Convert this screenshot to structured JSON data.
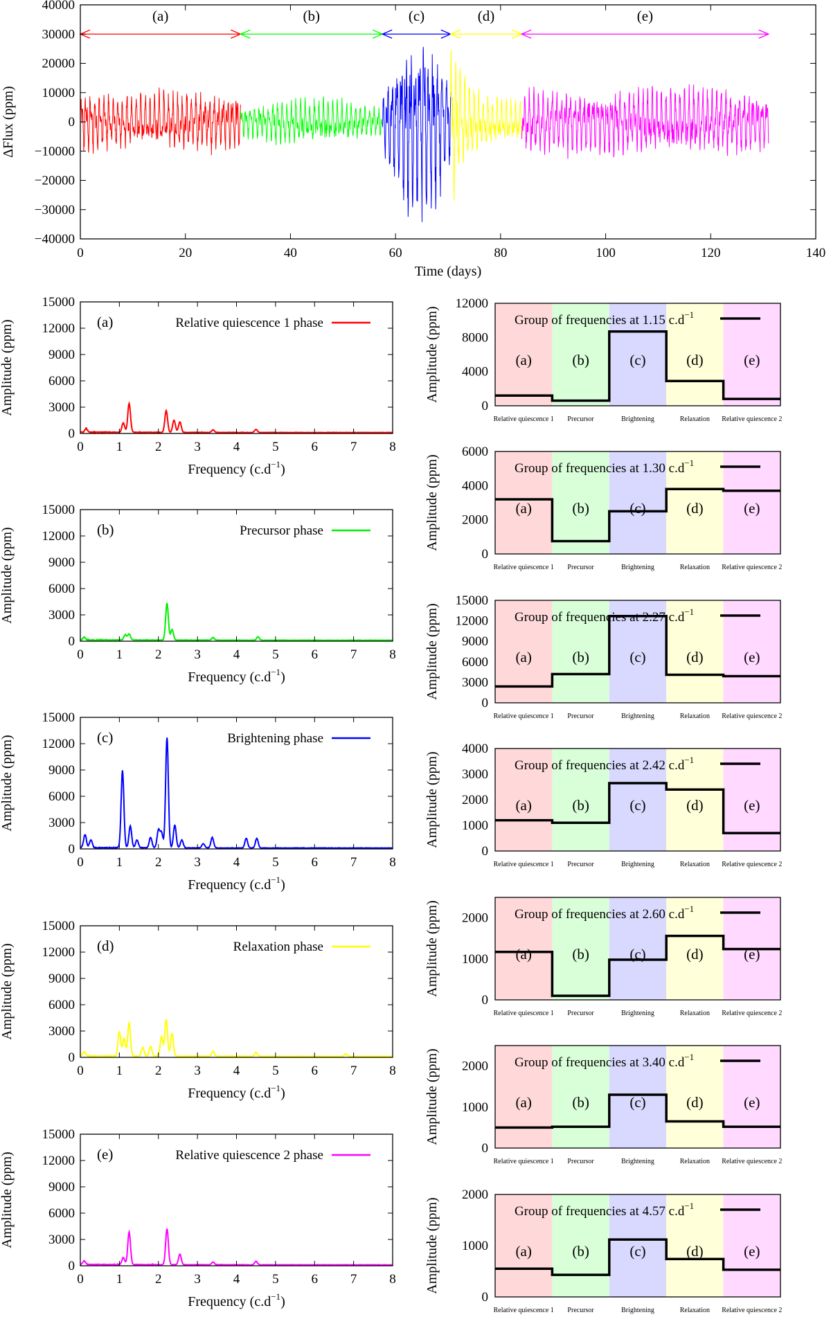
{
  "chart_data": [
    {
      "type": "line",
      "id": "light-curve",
      "xlabel": "Time (days)",
      "ylabel": "ΔFlux (ppm)",
      "xlim": [
        0,
        140
      ],
      "ylim": [
        -40000,
        40000
      ],
      "xticks": [
        "0",
        "20",
        "40",
        "60",
        "80",
        "100",
        "120",
        "140"
      ],
      "yticks": [
        "−40000",
        "−30000",
        "−20000",
        "−10000",
        "0",
        "10000",
        "20000",
        "30000",
        "40000"
      ],
      "segments": [
        {
          "label": "(a)",
          "start": 0,
          "end": 30.5,
          "color": "#ff0000"
        },
        {
          "label": "(b)",
          "start": 30.5,
          "end": 57.5,
          "color": "#00ff00"
        },
        {
          "label": "(c)",
          "start": 57.5,
          "end": 70.5,
          "color": "#0000ff"
        },
        {
          "label": "(d)",
          "start": 70.5,
          "end": 84,
          "color": "#ffff00"
        },
        {
          "label": "(e)",
          "start": 84,
          "end": 131,
          "color": "#ff00ff"
        }
      ],
      "arrow_level": 30000,
      "grid": false
    },
    {
      "type": "line",
      "id": "spectrum-a",
      "panel": "(a)",
      "legend": "Relative quiescence 1 phase",
      "color": "#ff0000",
      "xlabel": "Frequency (c.d",
      "xlabel_sup": "−1",
      "xlabel_end": ")",
      "ylabel": "Amplitude (ppm)",
      "xlim": [
        0,
        8
      ],
      "ylim": [
        0,
        15000
      ],
      "xticks": [
        "0",
        "1",
        "2",
        "3",
        "4",
        "5",
        "6",
        "7",
        "8"
      ],
      "yticks": [
        "0",
        "3000",
        "6000",
        "9000",
        "12000",
        "15000"
      ],
      "peaks": [
        [
          1.25,
          3300
        ],
        [
          1.1,
          1100
        ],
        [
          2.2,
          2500
        ],
        [
          2.4,
          1400
        ],
        [
          2.55,
          1200
        ],
        [
          0.15,
          400
        ],
        [
          3.4,
          300
        ],
        [
          4.5,
          350
        ]
      ]
    },
    {
      "type": "line",
      "id": "spectrum-b",
      "panel": "(b)",
      "legend": "Precursor phase",
      "color": "#00ee00",
      "xlabel": "Frequency (c.d",
      "xlabel_sup": "−1",
      "xlabel_end": ")",
      "ylabel": "Amplitude (ppm)",
      "xlim": [
        0,
        8
      ],
      "ylim": [
        0,
        15000
      ],
      "xticks": [
        "0",
        "1",
        "2",
        "3",
        "4",
        "5",
        "6",
        "7",
        "8"
      ],
      "yticks": [
        "0",
        "3000",
        "6000",
        "9000",
        "12000",
        "15000"
      ],
      "peaks": [
        [
          2.22,
          4200
        ],
        [
          2.35,
          1200
        ],
        [
          1.25,
          700
        ],
        [
          1.15,
          600
        ],
        [
          0.1,
          300
        ],
        [
          3.4,
          300
        ],
        [
          4.55,
          400
        ]
      ]
    },
    {
      "type": "line",
      "id": "spectrum-c",
      "panel": "(c)",
      "legend": "Brightening phase",
      "color": "#0000ff",
      "xlabel": "Frequency (c.d",
      "xlabel_sup": "−1",
      "xlabel_end": ")",
      "ylabel": "Amplitude (ppm)",
      "xlim": [
        0,
        8
      ],
      "ylim": [
        0,
        15000
      ],
      "xticks": [
        "0",
        "1",
        "2",
        "3",
        "4",
        "5",
        "6",
        "7",
        "8"
      ],
      "yticks": [
        "0",
        "3000",
        "6000",
        "9000",
        "12000",
        "15000"
      ],
      "peaks": [
        [
          1.08,
          8800
        ],
        [
          2.22,
          12600
        ],
        [
          1.28,
          2500
        ],
        [
          2.0,
          2000
        ],
        [
          2.08,
          1700
        ],
        [
          2.42,
          2600
        ],
        [
          0.12,
          1500
        ],
        [
          0.27,
          900
        ],
        [
          1.8,
          1200
        ],
        [
          1.45,
          900
        ],
        [
          3.38,
          1200
        ],
        [
          4.25,
          1100
        ],
        [
          4.52,
          1100
        ],
        [
          2.6,
          900
        ],
        [
          3.15,
          500
        ]
      ]
    },
    {
      "type": "line",
      "id": "spectrum-d",
      "panel": "(d)",
      "legend": "Relaxation phase",
      "color": "#ffff00",
      "xlabel": "Frequency (c.d",
      "xlabel_sup": "−1",
      "xlabel_end": ")",
      "ylabel": "Amplitude (ppm)",
      "xlim": [
        0,
        8
      ],
      "ylim": [
        0,
        15000
      ],
      "xticks": [
        "0",
        "1",
        "2",
        "3",
        "4",
        "5",
        "6",
        "7",
        "8"
      ],
      "yticks": [
        "0",
        "3000",
        "6000",
        "9000",
        "12000",
        "15000"
      ],
      "peaks": [
        [
          1.0,
          2800
        ],
        [
          1.25,
          3800
        ],
        [
          1.12,
          2000
        ],
        [
          2.2,
          4200
        ],
        [
          2.35,
          2600
        ],
        [
          2.08,
          2300
        ],
        [
          1.6,
          1000
        ],
        [
          1.8,
          1100
        ],
        [
          0.1,
          500
        ],
        [
          3.4,
          600
        ],
        [
          4.5,
          500
        ],
        [
          6.8,
          300
        ]
      ]
    },
    {
      "type": "line",
      "id": "spectrum-e",
      "panel": "(e)",
      "legend": "Relative quiescence 2 phase",
      "color": "#ff00ff",
      "xlabel": "Frequency (c.d",
      "xlabel_sup": "−1",
      "xlabel_end": ")",
      "ylabel": "Amplitude (ppm)",
      "xlim": [
        0,
        8
      ],
      "ylim": [
        0,
        15000
      ],
      "xticks": [
        "0",
        "1",
        "2",
        "3",
        "4",
        "5",
        "6",
        "7",
        "8"
      ],
      "yticks": [
        "0",
        "3000",
        "6000",
        "9000",
        "12000",
        "15000"
      ],
      "peaks": [
        [
          1.25,
          3700
        ],
        [
          2.22,
          4100
        ],
        [
          2.55,
          1200
        ],
        [
          1.1,
          800
        ],
        [
          0.1,
          400
        ],
        [
          3.4,
          300
        ],
        [
          4.5,
          400
        ]
      ]
    },
    {
      "type": "step",
      "id": "group-1.15",
      "legend": "Group of frequencies at 1.15 c.d",
      "legend_sup": "−1",
      "ylabel": "Amplitude (ppm)",
      "ylim": [
        0,
        12000
      ],
      "yticks": [
        "0",
        "4000",
        "8000",
        "12000"
      ],
      "values": [
        1200,
        600,
        8700,
        2900,
        800
      ]
    },
    {
      "type": "step",
      "id": "group-1.30",
      "legend": "Group of frequencies at 1.30 c.d",
      "legend_sup": "−1",
      "ylabel": "Amplitude (ppm)",
      "ylim": [
        0,
        6000
      ],
      "yticks": [
        "0",
        "2000",
        "4000",
        "6000"
      ],
      "values": [
        3200,
        750,
        2500,
        3800,
        3700
      ]
    },
    {
      "type": "step",
      "id": "group-2.27",
      "legend": "Group of frequencies at 2.27 c.d",
      "legend_sup": "−1",
      "ylabel": "Amplitude (ppm)",
      "ylim": [
        0,
        15000
      ],
      "yticks": [
        "0",
        "3000",
        "6000",
        "9000",
        "12000",
        "15000"
      ],
      "values": [
        2400,
        4200,
        12700,
        4100,
        3900
      ]
    },
    {
      "type": "step",
      "id": "group-2.42",
      "legend": "Group of frequencies at 2.42 c.d",
      "legend_sup": "−1",
      "ylabel": "Amplitude (ppm)",
      "ylim": [
        0,
        4000
      ],
      "yticks": [
        "0",
        "1000",
        "2000",
        "3000",
        "4000"
      ],
      "values": [
        1200,
        1100,
        2650,
        2400,
        700
      ]
    },
    {
      "type": "step",
      "id": "group-2.60",
      "legend": "Group of frequencies at 2.60 c.d",
      "legend_sup": "−1",
      "ylabel": "Amplitude (ppm)",
      "ylim": [
        0,
        2500
      ],
      "yticks": [
        "0",
        "1000",
        "2000"
      ],
      "values": [
        1170,
        100,
        980,
        1560,
        1240
      ]
    },
    {
      "type": "step",
      "id": "group-3.40",
      "legend": "Group of frequencies at 3.40 c.d",
      "legend_sup": "−1",
      "ylabel": "Amplitude (ppm)",
      "ylim": [
        0,
        2500
      ],
      "yticks": [
        "0",
        "1000",
        "2000"
      ],
      "values": [
        500,
        520,
        1300,
        650,
        520
      ]
    },
    {
      "type": "step",
      "id": "group-4.57",
      "legend": "Group of frequencies at 4.57 c.d",
      "legend_sup": "−1",
      "ylabel": "Amplitude (ppm)",
      "ylim": [
        0,
        2000
      ],
      "yticks": [
        "0",
        "1000",
        "2000"
      ],
      "values": [
        550,
        430,
        1120,
        740,
        530
      ]
    }
  ],
  "phases": {
    "labels": [
      "(a)",
      "(b)",
      "(c)",
      "(d)",
      "(e)"
    ],
    "categories": [
      "Relative quiescence 1",
      "Precursor",
      "Brightening",
      "Relaxation",
      "Relative quiescence 2"
    ],
    "band_colors": [
      "#ffd9d9",
      "#d9ffd9",
      "#d9d9ff",
      "#ffffd9",
      "#ffd9ff"
    ]
  }
}
